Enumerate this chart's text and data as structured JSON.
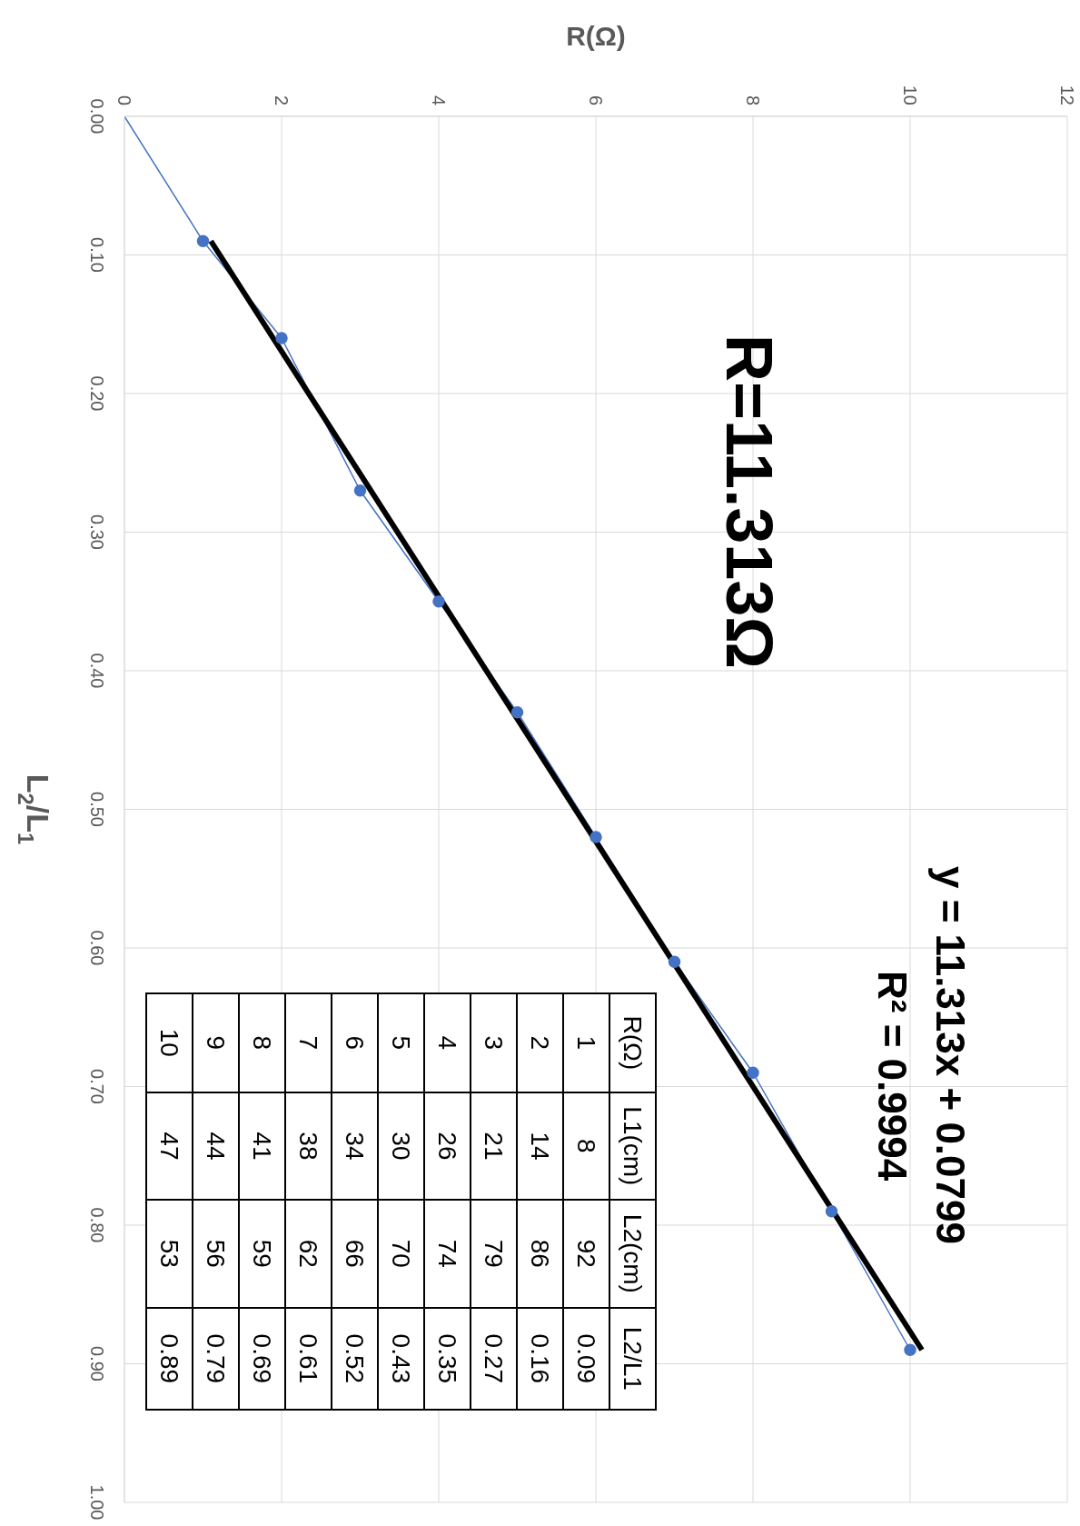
{
  "chart_data": {
    "type": "line",
    "xlabel": "R(Ω)",
    "ylabel": "L$_{2}$/L$_{1}$",
    "xlim": [
      0,
      12
    ],
    "xticks": [
      0,
      2,
      4,
      6,
      8,
      10,
      12
    ],
    "ylim": [
      1,
      0
    ],
    "yticks": [
      {
        "value": 0,
        "label": "0.00"
      },
      {
        "value": 0.1,
        "label": "0.10"
      },
      {
        "value": 0.2,
        "label": "0.20"
      },
      {
        "value": 0.3,
        "label": "0.30"
      },
      {
        "value": 0.4,
        "label": "0.40"
      },
      {
        "value": 0.5,
        "label": "0.50"
      },
      {
        "value": 0.6,
        "label": "0.60"
      },
      {
        "value": 0.7,
        "label": "0.70"
      },
      {
        "value": 0.8,
        "label": "0.80"
      },
      {
        "value": 0.9,
        "label": "0.90"
      },
      {
        "value": 1,
        "label": "1.00"
      }
    ],
    "grid": true,
    "series": [
      {
        "color": "#4472c4",
        "marker": "circle",
        "x": [
          1,
          2,
          3,
          4,
          5,
          6,
          7,
          8,
          9,
          10
        ],
        "values": [
          0.09,
          0.16,
          0.27,
          0.35,
          0.43,
          0.52,
          0.61,
          0.69,
          0.79,
          0.89
        ]
      },
      {
        "color": "#4472c4",
        "marker": "none",
        "x": [
          0,
          1
        ],
        "values": [
          0,
          0.09
        ]
      },
      {
        "color": "#000000",
        "marker": "none",
        "x": [
          1.1,
          10.15
        ],
        "values": [
          0.09,
          0.89
        ]
      }
    ],
    "annotations": [
      "R=11.313Ω",
      "y = 11.313x + 0.0799",
      "R² = 0.9994",
      "R(Ω)",
      "L1(cm)",
      "L2(cm)",
      "L2/L1",
      "1",
      "8",
      "92",
      "0.09",
      "2",
      "14",
      "86",
      "0.16",
      "3",
      "21",
      "79",
      "0.27",
      "4",
      "26",
      "74",
      "0.35",
      "5",
      "30",
      "70",
      "0.43",
      "6",
      "34",
      "66",
      "0.52",
      "7",
      "38",
      "62",
      "0.61",
      "8",
      "41",
      "59",
      "0.69",
      "9",
      "44",
      "56",
      "0.79",
      "10",
      "47",
      "53",
      "0.89"
    ]
  }
}
